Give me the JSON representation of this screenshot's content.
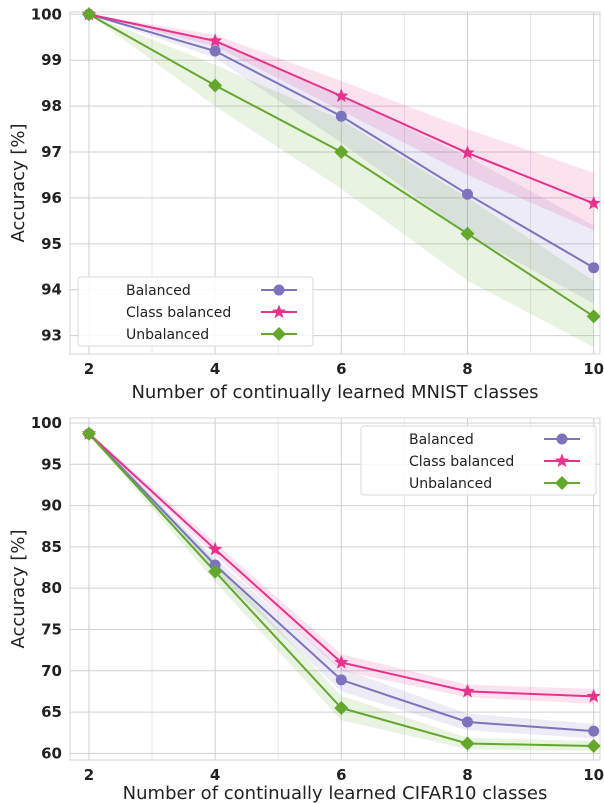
{
  "chart_data": [
    {
      "type": "line",
      "xlabel": "Number of continually learned MNIST classes",
      "ylabel": "Accuracy [%]",
      "x": [
        2,
        4,
        6,
        8,
        10
      ],
      "xlim": [
        1.7,
        10.1
      ],
      "ylim": [
        92.6,
        100.05
      ],
      "xticks": [
        2,
        4,
        6,
        8,
        10
      ],
      "yticks": [
        93,
        94,
        95,
        96,
        97,
        98,
        99,
        100
      ],
      "grid": true,
      "legend_position": "bottom-left",
      "series": [
        {
          "name": "Balanced",
          "values": [
            100.0,
            99.2,
            97.78,
            96.08,
            94.48
          ],
          "band_low": [
            100.0,
            99.05,
            97.2,
            95.2,
            93.7
          ],
          "band_high": [
            100.0,
            99.4,
            98.2,
            96.9,
            95.4
          ],
          "color": "#7b74bd",
          "marker": "circle"
        },
        {
          "name": "Class balanced",
          "values": [
            100.0,
            99.42,
            98.22,
            96.98,
            95.88
          ],
          "band_low": [
            100.0,
            99.3,
            97.9,
            96.5,
            95.3
          ],
          "band_high": [
            100.0,
            99.55,
            98.55,
            97.5,
            96.55
          ],
          "color": "#e8328c",
          "marker": "star"
        },
        {
          "name": "Unbalanced",
          "values": [
            100.0,
            98.45,
            97.0,
            95.22,
            93.42
          ],
          "band_low": [
            100.0,
            98.0,
            96.2,
            94.2,
            92.75
          ],
          "band_high": [
            100.0,
            98.9,
            97.7,
            96.0,
            94.2
          ],
          "color": "#63a72d",
          "marker": "diamond"
        }
      ]
    },
    {
      "type": "line",
      "xlabel": "Number of continually learned CIFAR10 classes",
      "ylabel": "Accuracy [%]",
      "x": [
        2,
        4,
        6,
        8,
        10
      ],
      "xlim": [
        1.7,
        10.1
      ],
      "ylim": [
        59.2,
        100.6
      ],
      "xticks": [
        2,
        4,
        6,
        8,
        10
      ],
      "yticks": [
        60,
        65,
        70,
        75,
        80,
        85,
        90,
        95,
        100
      ],
      "grid": true,
      "legend_position": "top-right",
      "series": [
        {
          "name": "Balanced",
          "values": [
            98.7,
            82.8,
            68.9,
            63.8,
            62.7
          ],
          "band_low": [
            98.5,
            82.0,
            67.5,
            62.8,
            61.8
          ],
          "band_high": [
            98.9,
            83.6,
            70.3,
            64.8,
            63.6
          ],
          "color": "#7b74bd",
          "marker": "circle"
        },
        {
          "name": "Class balanced",
          "values": [
            98.7,
            84.7,
            71.0,
            67.5,
            66.9
          ],
          "band_low": [
            98.5,
            84.0,
            70.0,
            66.8,
            66.0
          ],
          "band_high": [
            98.9,
            85.5,
            72.0,
            68.3,
            67.8
          ],
          "color": "#e8328c",
          "marker": "star"
        },
        {
          "name": "Unbalanced",
          "values": [
            98.7,
            82.0,
            65.5,
            61.2,
            60.9
          ],
          "band_low": [
            98.5,
            80.8,
            64.0,
            60.5,
            60.3
          ],
          "band_high": [
            98.9,
            83.2,
            67.0,
            61.9,
            61.5
          ],
          "color": "#63a72d",
          "marker": "diamond"
        }
      ]
    }
  ]
}
